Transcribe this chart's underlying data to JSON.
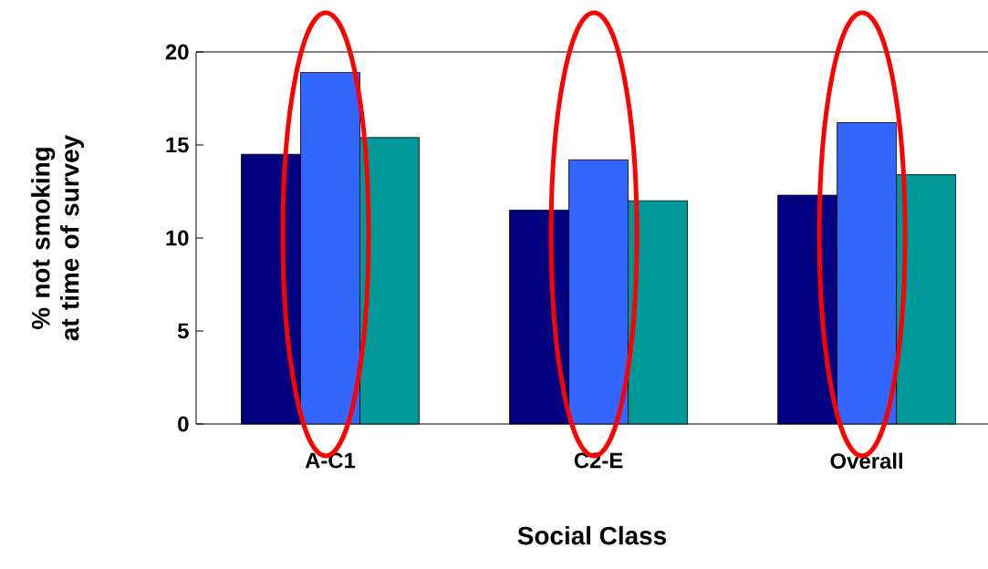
{
  "chart_data": {
    "type": "bar",
    "xlabel": "Social Class",
    "ylabel": "% not smoking at time of survey",
    "categories": [
      "A-C1",
      "C2-E",
      "Overall"
    ],
    "series": [
      {
        "color": "#000080",
        "values": [
          14.5,
          11.5,
          12.3
        ]
      },
      {
        "color": "#3366ff",
        "values": [
          18.9,
          14.2,
          16.2
        ]
      },
      {
        "color": "#009999",
        "values": [
          15.4,
          12.0,
          13.4
        ]
      }
    ],
    "ylim": [
      0,
      20
    ],
    "yticks": [
      0,
      5,
      10,
      15,
      20
    ],
    "grid": false
  }
}
